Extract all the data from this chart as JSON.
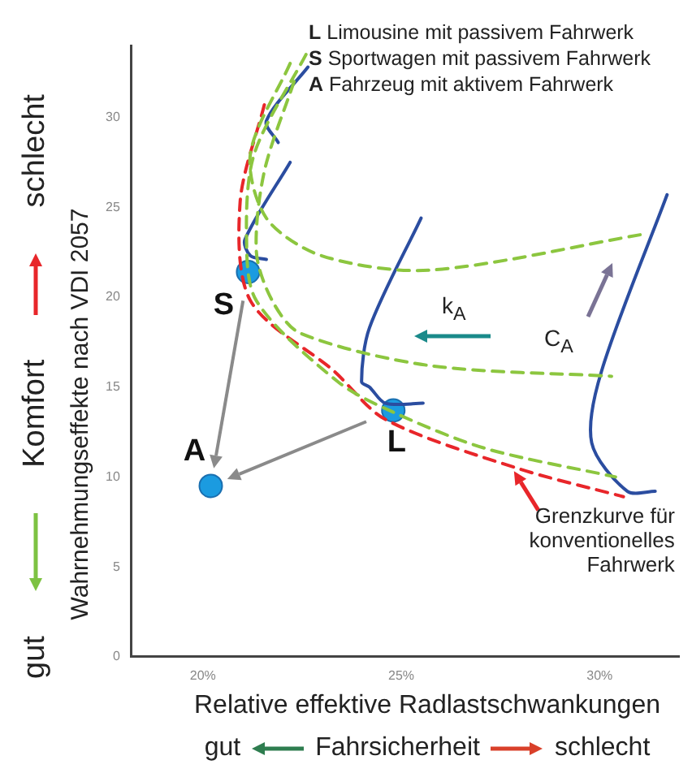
{
  "chart_data": {
    "type": "line",
    "xlabel": "Relative effektive Radlastschwankungen",
    "ylabel": "Wahrnehmungseffekte nach VDI 2057",
    "xlim": [
      18.2,
      32
    ],
    "xticks": [
      {
        "value": 20,
        "label": "20%"
      },
      {
        "value": 25,
        "label": "25%"
      },
      {
        "value": 30,
        "label": "30%"
      }
    ],
    "ylim": [
      0,
      34
    ],
    "yticks": [
      0,
      5,
      10,
      15,
      20,
      25,
      30
    ],
    "annotations": [
      "L Limousine mit passivem Fahrwerk",
      "S Sportwagen mit passivem Fahrwerk",
      "A Fahrzeug mit aktivem Fahrwerk",
      "gut",
      "Komfort",
      "schlecht",
      "gut",
      "Fahrsicherheit",
      "schlecht",
      "k$_{A}$",
      "C$_{A}$",
      {
        "text": "Grenzkurve für\nkonventionelles\nFahrwerk",
        "x": 27.8,
        "y": 10.5
      }
    ],
    "series": [
      {
        "type": "line",
        "color": "#8cc63f",
        "line_style": "dashed",
        "marker": "none",
        "x": [
          22.6,
          21.3,
          21.1,
          21.35,
          23.4,
          24.8,
          27.1,
          30.4
        ],
        "values": [
          33.5,
          28,
          23.5,
          19.8,
          15.3,
          13.6,
          11.6,
          10
        ]
      },
      {
        "type": "line",
        "color": "#8cc63f",
        "line_style": "dashed",
        "marker": "none",
        "x": [
          22.3,
          21.55,
          21.35,
          21.75,
          22.45,
          25.7,
          30.3
        ],
        "values": [
          32,
          27,
          22.5,
          19.8,
          18,
          16.2,
          15.6
        ]
      },
      {
        "type": "line",
        "color": "#8cc63f",
        "line_style": "dashed",
        "marker": "none",
        "x": [
          22.2,
          21.2,
          21.6,
          23,
          25.7,
          31.1
        ],
        "values": [
          33,
          28,
          24.4,
          22.3,
          21.5,
          23.5
        ]
      },
      {
        "type": "line",
        "color": "#e8262a",
        "line_style": "dashed",
        "marker": "none",
        "x": [
          21.55,
          20.94,
          21.2,
          23.3,
          24.6,
          27.9,
          30.6
        ],
        "values": [
          30.7,
          25.3,
          19.8,
          15.9,
          13.2,
          10.5,
          8.9
        ]
      },
      {
        "type": "line",
        "color": "#2b4da0",
        "line_style": "solid",
        "marker": "none",
        "x": [
          22.65,
          21.6,
          21.9
        ],
        "values": [
          32.8,
          29.8,
          28.6
        ]
      },
      {
        "type": "line",
        "color": "#2b4da0",
        "line_style": "solid",
        "marker": "none",
        "x": [
          22.2,
          21.06,
          21.2,
          21.6
        ],
        "values": [
          27.5,
          23.2,
          22.3,
          22.1
        ]
      },
      {
        "type": "line",
        "color": "#2b4da0",
        "line_style": "solid",
        "marker": "none",
        "x": [
          25.5,
          24.2,
          24,
          24.2,
          24.6,
          25.55
        ],
        "values": [
          24.4,
          18.3,
          15.3,
          15,
          14.1,
          14.1
        ]
      },
      {
        "type": "line",
        "color": "#2b4da0",
        "line_style": "solid",
        "marker": "none",
        "x": [
          31.7,
          30.05,
          29.8,
          30.7,
          31.4
        ],
        "values": [
          25.7,
          15.9,
          11.9,
          9.2,
          9.2
        ]
      },
      {
        "type": "scatter",
        "color": "#1b9be0",
        "marker": "circle",
        "x": [
          21.14,
          20.2,
          24.8
        ],
        "values": [
          21.4,
          9.5,
          13.7
        ],
        "value_labels": [
          "S",
          "A",
          "L"
        ]
      }
    ]
  }
}
